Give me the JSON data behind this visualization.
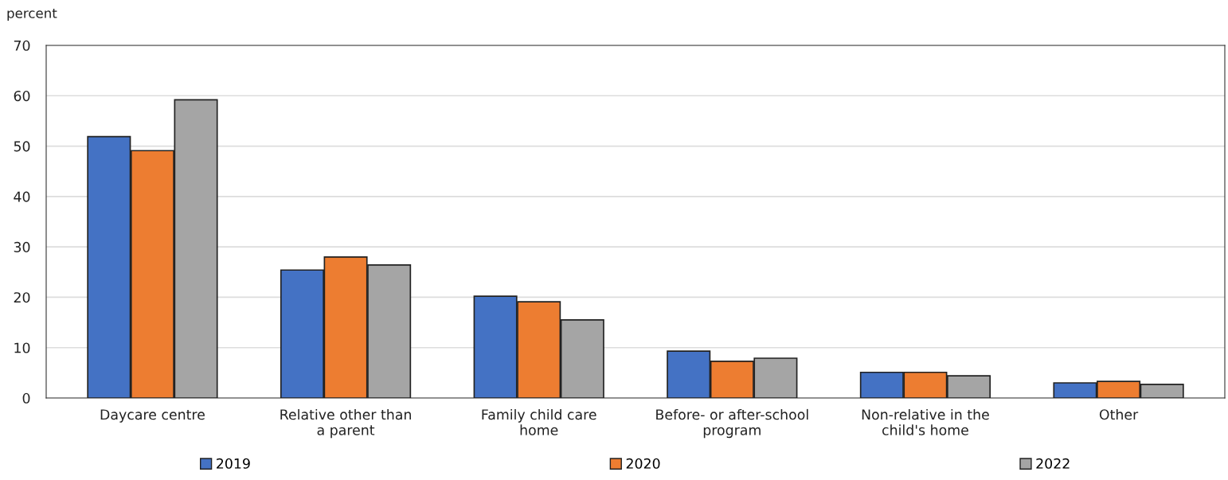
{
  "chart_data": {
    "type": "bar",
    "ylabel": "percent",
    "categories": [
      "Daycare centre",
      "Relative other than\na parent",
      "Family child care\nhome",
      "Before- or after-school\nprogram",
      "Non-relative in the\nchild's home",
      "Other"
    ],
    "series": [
      {
        "name": "2019",
        "color": "#4472c4",
        "values": [
          51.9,
          25.4,
          20.2,
          9.3,
          5.1,
          3.0
        ]
      },
      {
        "name": "2020",
        "color": "#ed7d31",
        "values": [
          49.1,
          28.0,
          19.1,
          7.3,
          5.1,
          3.3
        ]
      },
      {
        "name": "2022",
        "color": "#a5a5a5",
        "values": [
          59.2,
          26.4,
          15.5,
          7.9,
          4.4,
          2.7
        ]
      }
    ],
    "ylim": [
      0,
      70
    ],
    "yticks": [
      0,
      10,
      20,
      30,
      40,
      50,
      60,
      70
    ],
    "grid": "y",
    "legend": "bottom"
  }
}
